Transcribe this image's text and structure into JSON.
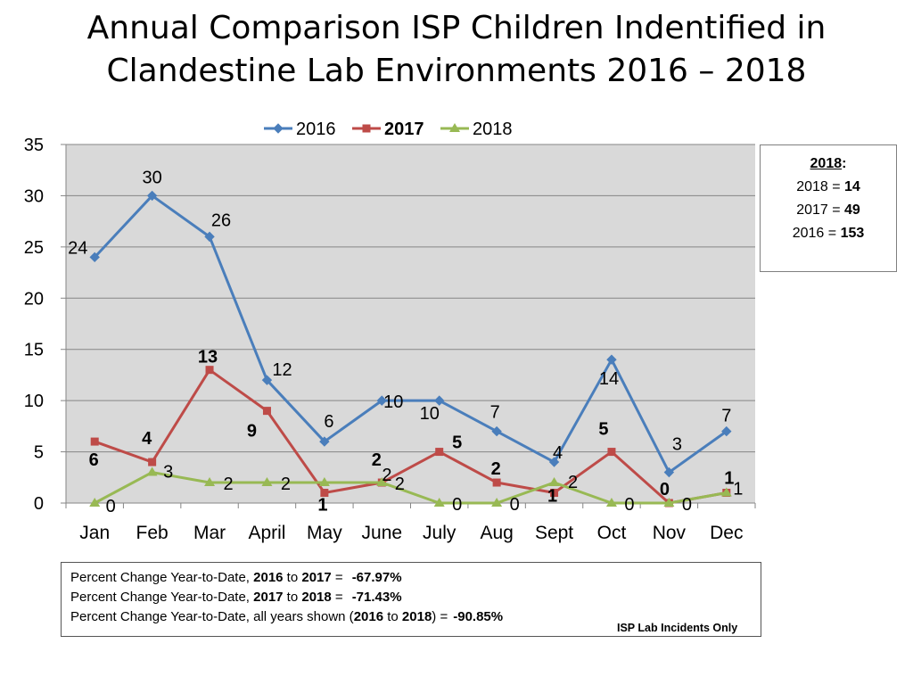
{
  "title_lines": [
    "Annual Comparison ISP Children Indentified in",
    "Clandestine Lab Environments 2016 – 2018"
  ],
  "chart_data": {
    "type": "line",
    "categories": [
      "Jan",
      "Feb",
      "Mar",
      "April",
      "May",
      "June",
      "July",
      "Aug",
      "Sept",
      "Oct",
      "Nov",
      "Dec"
    ],
    "ylim": [
      0,
      35
    ],
    "yticks": [
      0,
      5,
      10,
      15,
      20,
      25,
      30,
      35
    ],
    "grid": true,
    "legend": "top",
    "series": [
      {
        "name": "2016",
        "color": "#4a7ebb",
        "marker": "diamond",
        "bold_labels": false,
        "values": [
          24,
          30,
          26,
          12,
          6,
          10,
          10,
          7,
          4,
          14,
          3,
          7
        ]
      },
      {
        "name": "2017",
        "color": "#be4b48",
        "marker": "square",
        "bold_labels": true,
        "values": [
          6,
          4,
          13,
          9,
          1,
          2,
          5,
          2,
          1,
          5,
          0,
          1
        ]
      },
      {
        "name": "2018",
        "color": "#98b954",
        "marker": "triangle",
        "bold_labels": false,
        "values": [
          0,
          3,
          2,
          2,
          2,
          2,
          0,
          0,
          2,
          0,
          0,
          1
        ]
      }
    ]
  },
  "summary": {
    "header": "2018",
    "rows": [
      {
        "label": "2018 = ",
        "value": "14"
      },
      {
        "label": "2017 = ",
        "value": "49"
      },
      {
        "label": "2016 = ",
        "value": "153"
      }
    ]
  },
  "pct": {
    "line1": {
      "pre": "Percent Change Year-to-Date, ",
      "a": "2016",
      "mid": " to ",
      "b": "2017",
      "post": " =",
      "val": "-67.97%"
    },
    "line2": {
      "pre": "Percent Change Year-to-Date, ",
      "a": "2017",
      "mid": " to ",
      "b": "2018",
      "post": " =",
      "val": "-71.43%"
    },
    "line3": {
      "pre": "Percent Change Year-to-Date, all years shown (",
      "a": "2016",
      "mid": " to ",
      "b": "2018",
      "post": ") =",
      "val": "-90.85%"
    }
  },
  "footnote": "ISP Lab Incidents Only"
}
